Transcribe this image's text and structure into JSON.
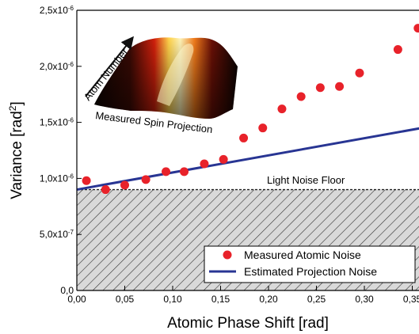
{
  "chart_data": {
    "type": "scatter",
    "xlabel": "Atomic Phase Shift [rad]",
    "ylabel_base": "Variance [rad",
    "ylabel_sup": "2",
    "ylabel_end": "]",
    "xlim": [
      0.0,
      0.36
    ],
    "ylim": [
      0.0,
      2.5e-06
    ],
    "x_ticks": [
      {
        "value": 0.0,
        "label": "0,00"
      },
      {
        "value": 0.05,
        "label": "0,05"
      },
      {
        "value": 0.1,
        "label": "0,10"
      },
      {
        "value": 0.15,
        "label": "0,15"
      },
      {
        "value": 0.2,
        "label": "0,20"
      },
      {
        "value": 0.25,
        "label": "0,25"
      },
      {
        "value": 0.3,
        "label": "0,30"
      },
      {
        "value": 0.35,
        "label": "0,35"
      }
    ],
    "y_ticks": [
      {
        "value": 0.0,
        "label": "0,0",
        "exp": ""
      },
      {
        "value": 5e-07,
        "label": "5,0x10",
        "exp": "-7"
      },
      {
        "value": 1e-06,
        "label": "1,0x10",
        "exp": "-6"
      },
      {
        "value": 1.5e-06,
        "label": "1,5x10",
        "exp": "-6"
      },
      {
        "value": 2e-06,
        "label": "2,0x10",
        "exp": "-6"
      },
      {
        "value": 2.5e-06,
        "label": "2,5x10",
        "exp": "-6"
      }
    ],
    "series": [
      {
        "name": "Measured Atomic Noise",
        "kind": "scatter",
        "color": "#e8222a",
        "x": [
          0.01,
          0.03,
          0.05,
          0.072,
          0.093,
          0.112,
          0.133,
          0.153,
          0.174,
          0.194,
          0.214,
          0.234,
          0.254,
          0.274,
          0.295,
          0.335,
          0.356
        ],
        "y": [
          9.8e-07,
          9e-07,
          9.4e-07,
          9.9e-07,
          1.06e-06,
          1.06e-06,
          1.13e-06,
          1.17e-06,
          1.36e-06,
          1.45e-06,
          1.62e-06,
          1.73e-06,
          1.81e-06,
          1.82e-06,
          1.94e-06,
          2.15e-06,
          2.34e-06
        ]
      },
      {
        "name": "Estimated Projection Noise",
        "kind": "line",
        "color": "#283593",
        "x": [
          0.0,
          0.36
        ],
        "y": [
          9e-07,
          1.45e-06
        ]
      }
    ],
    "noise_floor": {
      "label": "Light Noise Floor",
      "level": 9e-07
    },
    "inset": {
      "caption": "Measured Spin Projection",
      "axis_label": "Atom Number"
    },
    "legend_position": "bottom-right",
    "grid": false
  }
}
